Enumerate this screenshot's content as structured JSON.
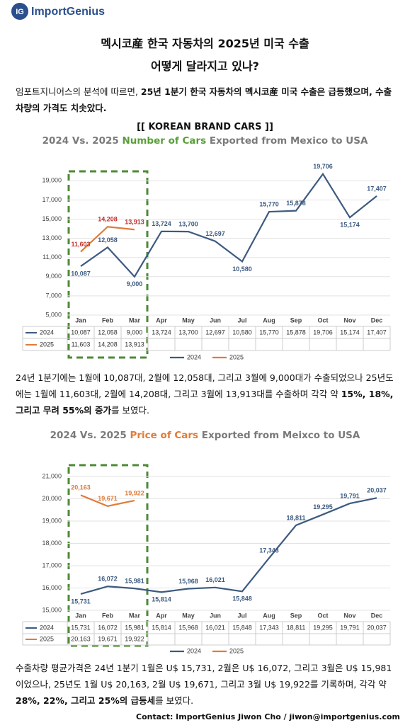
{
  "logo_mark": "IG",
  "logo_text": "ImportGenius",
  "title_lines": [
    "멕시코産 한국 자동차의 2025년 미국 수출",
    "어떻게 달라지고 있나?"
  ],
  "paragraphs": [
    [
      {
        "text": "임포트지니어스의 분석에 따르면, ",
        "bold": false
      },
      {
        "text": "25년 1분기 한국 자동차의 멕시코産 미국 수출은 급등했으며, 수출 차량의 가격도 치솟았다.",
        "bold": true
      }
    ],
    [
      {
        "text": "24년 1분기에는 1월에 10,087대, 2월에 12,058대, 그리고 3월에 9,000대가 수출되었으나 25년도에는 1월에 11,603대, 2월에 14,208대, 그리고 3월에 13,913대를 수출하며 각각 약 ",
        "bold": false
      },
      {
        "text": "15%, 18%, 그리고 무려 55%의 증가",
        "bold": true
      },
      {
        "text": "를 보였다.",
        "bold": false
      }
    ],
    [
      {
        "text": "수출차량 평균가격은 24년 1분기 1월은 U$ 15,731, 2월은 U$ 16,072, 그리고 3월은 U$ 15,981이었으나, 25년도 1월 U$ 20,163, 2월 U$ 19,671, 그리고 3월 U$ 19,922를 기록하며, 각각 약 ",
        "bold": false
      },
      {
        "text": "28%, 22%, 그리고 25%의 급등세",
        "bold": true
      },
      {
        "text": "를 보였다.",
        "bold": false
      }
    ]
  ],
  "footer": "Contact: ImportGenius Jiwon Cho / jiwon@importgenius.com",
  "chart_data": [
    {
      "type": "line",
      "heading": "[[ KOREAN BRAND CARS ]]",
      "title": [
        "2024 Vs. 2025 ",
        "Number of Cars",
        " Exported from Mexico to USA"
      ],
      "title_highlight_color": "#5a9e3a",
      "categories": [
        "Jan",
        "Feb",
        "Mar",
        "Apr",
        "May",
        "Jun",
        "Jul",
        "Aug",
        "Sep",
        "Oct",
        "Nov",
        "Dec"
      ],
      "series": [
        {
          "name": "2024",
          "color": "#3d5a80",
          "label_color": "#3d5a80",
          "values": [
            10087,
            12058,
            9000,
            13724,
            13700,
            12697,
            10580,
            15770,
            15878,
            19706,
            15174,
            17407
          ],
          "value_labels": [
            "10,087",
            "12,058",
            "9,000",
            "13,724",
            "13,700",
            "12,697",
            "10,580",
            "15,770",
            "15,878",
            "19,706",
            "15,174",
            "17,407"
          ]
        },
        {
          "name": "2025",
          "color": "#e07b39",
          "label_color": "#c0302a",
          "values": [
            11603,
            14208,
            13913,
            null,
            null,
            null,
            null,
            null,
            null,
            null,
            null,
            null
          ],
          "value_labels": [
            "11,603",
            "14,208",
            "13,913",
            null,
            null,
            null,
            null,
            null,
            null,
            null,
            null,
            null
          ]
        }
      ],
      "ylim": [
        5000,
        20500
      ],
      "yticks": [
        {
          "value": 5000,
          "label": "5,000"
        },
        {
          "value": 7000,
          "label": "7,000"
        },
        {
          "value": 9000,
          "label": "9,000"
        },
        {
          "value": 11000,
          "label": "11,000"
        },
        {
          "value": 13000,
          "label": "13,000"
        },
        {
          "value": 15000,
          "label": "15,000"
        },
        {
          "value": 17000,
          "label": "17,000"
        },
        {
          "value": 19000,
          "label": "19,000"
        }
      ],
      "grid": true
    },
    {
      "type": "line",
      "title": [
        "2024 Vs. 2025 ",
        "Price of Cars",
        " Exported from Meixco to USA"
      ],
      "title_highlight_color": "#e07b39",
      "categories": [
        "Jan",
        "Feb",
        "Mar",
        "Apr",
        "May",
        "Jun",
        "Jul",
        "Aug",
        "Sep",
        "Oct",
        "Nov",
        "Dec"
      ],
      "series": [
        {
          "name": "2024",
          "color": "#3d5a80",
          "label_color": "#3d5a80",
          "values": [
            15731,
            16072,
            15981,
            15814,
            15968,
            16021,
            15848,
            17343,
            18811,
            19295,
            19791,
            20037
          ],
          "value_labels": [
            "15,731",
            "16,072",
            "15,981",
            "15,814",
            "15,968",
            "16,021",
            "15,848",
            "17,343",
            "18,811",
            "19,295",
            "19,791",
            "20,037"
          ]
        },
        {
          "name": "2025",
          "color": "#e07b39",
          "label_color": "#e07b39",
          "values": [
            20163,
            19671,
            19922,
            null,
            null,
            null,
            null,
            null,
            null,
            null,
            null,
            null
          ],
          "value_labels": [
            "20,163",
            "19,671",
            "19,922",
            null,
            null,
            null,
            null,
            null,
            null,
            null,
            null,
            null
          ]
        }
      ],
      "ylim": [
        15000,
        21000
      ],
      "yticks": [
        {
          "value": 15000,
          "label": "15,000"
        },
        {
          "value": 16000,
          "label": "16,000"
        },
        {
          "value": 17000,
          "label": "17,000"
        },
        {
          "value": 18000,
          "label": "18,000"
        },
        {
          "value": 19000,
          "label": "19,000"
        },
        {
          "value": 20000,
          "label": "20,000"
        },
        {
          "value": 21000,
          "label": "21,000"
        }
      ],
      "grid": true
    }
  ]
}
